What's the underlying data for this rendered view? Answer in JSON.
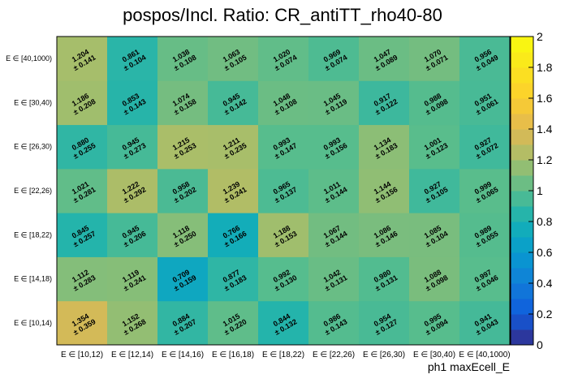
{
  "chart_data": {
    "type": "heatmap",
    "title": "pospos/Incl. Ratio: CR_antiTT_rho40-80",
    "xlabel": "ph1 maxEcell_E",
    "ylabel": "",
    "x_categories": [
      "E ∈ [10,12)",
      "E ∈ [12,14)",
      "E ∈ [14,16)",
      "E ∈ [16,18)",
      "E ∈ [18,22)",
      "E ∈ [22,26)",
      "E ∈ [26,30)",
      "E ∈ [30,40)",
      "E ∈ [40,1000)"
    ],
    "y_categories": [
      "E ∈ [10,14)",
      "E ∈ [14,18)",
      "E ∈ [18,22)",
      "E ∈ [22,26)",
      "E ∈ [26,30)",
      "E ∈ [30,40)",
      "E ∈ [40,1000)"
    ],
    "values": [
      [
        1.354,
        1.152,
        0.884,
        1.015,
        0.844,
        0.986,
        0.954,
        0.995,
        0.941
      ],
      [
        1.112,
        1.119,
        0.709,
        0.877,
        0.992,
        1.042,
        0.98,
        1.088,
        0.997
      ],
      [
        0.845,
        0.945,
        1.118,
        0.766,
        1.188,
        1.067,
        1.086,
        1.085,
        0.989
      ],
      [
        1.021,
        1.222,
        0.958,
        1.239,
        0.965,
        1.011,
        1.144,
        0.927,
        0.999
      ],
      [
        0.88,
        0.945,
        1.215,
        1.211,
        0.993,
        0.993,
        1.134,
        1.001,
        0.927
      ],
      [
        1.186,
        0.853,
        1.074,
        0.945,
        1.048,
        1.045,
        0.917,
        0.988,
        0.951
      ],
      [
        1.204,
        0.861,
        1.038,
        1.063,
        1.02,
        0.969,
        1.047,
        1.07,
        0.956
      ]
    ],
    "value_labels": [
      [
        "1.354",
        "1.152",
        "0.884",
        "1.015",
        "0.844",
        "0.986",
        "0.954",
        "0.995",
        "0.941"
      ],
      [
        "1.112",
        "1.119",
        "0.709",
        "0.877",
        "0.992",
        "1.042",
        "0.980",
        "1.088",
        "0.997"
      ],
      [
        "0.845",
        "0.945",
        "1.118",
        "0.766",
        "1.188",
        "1.067",
        "1.086",
        "1.085",
        "0.989"
      ],
      [
        "1.021",
        "1.222",
        "0.958",
        "1.239",
        "0.965",
        "1.011",
        "1.144",
        "0.927",
        "0.999"
      ],
      [
        "0.880",
        "0.945",
        "1.215",
        "1.211",
        "0.993",
        "0.993",
        "1.134",
        "1.001",
        "0.927"
      ],
      [
        "1.186",
        "0.853",
        "1.074",
        "0.945",
        "1.048",
        "1.045",
        "0.917",
        "0.988",
        "0.951"
      ],
      [
        "1.204",
        "0.861",
        "1.038",
        "1.063",
        "1.020",
        "0.969",
        "1.047",
        "1.070",
        "0.956"
      ]
    ],
    "error_labels": [
      [
        "± 0.359",
        "± 0.268",
        "± 0.207",
        "± 0.220",
        "± 0.132",
        "± 0.143",
        "± 0.127",
        "± 0.094",
        "± 0.043"
      ],
      [
        "± 0.283",
        "± 0.241",
        "± 0.159",
        "± 0.183",
        "± 0.130",
        "± 0.131",
        "± 0.131",
        "± 0.098",
        "± 0.046"
      ],
      [
        "± 0.257",
        "± 0.206",
        "± 0.250",
        "± 0.166",
        "± 0.153",
        "± 0.144",
        "± 0.146",
        "± 0.104",
        "± 0.055"
      ],
      [
        "± 0.281",
        "± 0.292",
        "± 0.202",
        "± 0.241",
        "± 0.137",
        "± 0.144",
        "± 0.156",
        "± 0.105",
        "± 0.065"
      ],
      [
        "± 0.255",
        "± 0.273",
        "± 0.253",
        "± 0.235",
        "± 0.147",
        "± 0.156",
        "± 0.183",
        "± 0.123",
        "± 0.072"
      ],
      [
        "± 0.208",
        "± 0.143",
        "± 0.158",
        "± 0.142",
        "± 0.108",
        "± 0.119",
        "± 0.122",
        "± 0.098",
        "± 0.061"
      ],
      [
        "± 0.141",
        "± 0.104",
        "± 0.108",
        "± 0.105",
        "± 0.074",
        "± 0.074",
        "± 0.089",
        "± 0.071",
        "± 0.049"
      ]
    ],
    "zlim": [
      0,
      2
    ],
    "colorbar_ticks": [
      "0",
      "0.2",
      "0.4",
      "0.6",
      "0.8",
      "1",
      "1.2",
      "1.4",
      "1.6",
      "1.8",
      "2"
    ],
    "colormap": "parula",
    "grid": false,
    "legend": "colorbar right"
  }
}
